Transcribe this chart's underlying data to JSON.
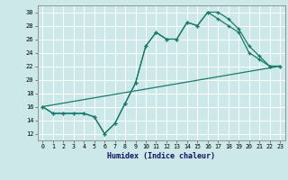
{
  "xlabel": "Humidex (Indice chaleur)",
  "xlim": [
    -0.5,
    23.5
  ],
  "ylim": [
    11,
    31
  ],
  "yticks": [
    12,
    14,
    16,
    18,
    20,
    22,
    24,
    26,
    28,
    30
  ],
  "xticks": [
    0,
    1,
    2,
    3,
    4,
    5,
    6,
    7,
    8,
    9,
    10,
    11,
    12,
    13,
    14,
    15,
    16,
    17,
    18,
    19,
    20,
    21,
    22,
    23
  ],
  "background_color": "#cce8e8",
  "grid_color": "#ffffff",
  "line_color": "#1a7a6a",
  "line1_x": [
    0,
    1,
    2,
    3,
    4,
    5,
    6,
    7,
    8,
    9,
    10,
    11,
    12,
    13,
    14,
    15,
    16,
    17,
    18,
    19,
    20,
    21,
    22,
    23
  ],
  "line1_y": [
    16,
    15,
    15,
    15,
    15,
    14.5,
    12,
    13.5,
    16.5,
    19.5,
    25,
    27,
    26,
    26,
    28.5,
    28,
    30,
    30,
    29,
    27.5,
    25,
    23.5,
    22,
    22
  ],
  "line2_x": [
    0,
    1,
    2,
    3,
    4,
    5,
    6,
    7,
    8,
    9,
    10,
    11,
    12,
    13,
    14,
    15,
    16,
    17,
    18,
    19,
    20,
    21,
    22,
    23
  ],
  "line2_y": [
    16,
    15,
    15,
    15,
    15,
    14.5,
    12,
    13.5,
    16.5,
    19.5,
    25,
    27,
    26,
    26,
    28.5,
    28,
    30,
    29,
    28,
    27,
    24,
    23,
    22,
    22
  ],
  "line3_x": [
    0,
    23
  ],
  "line3_y": [
    16,
    22
  ]
}
